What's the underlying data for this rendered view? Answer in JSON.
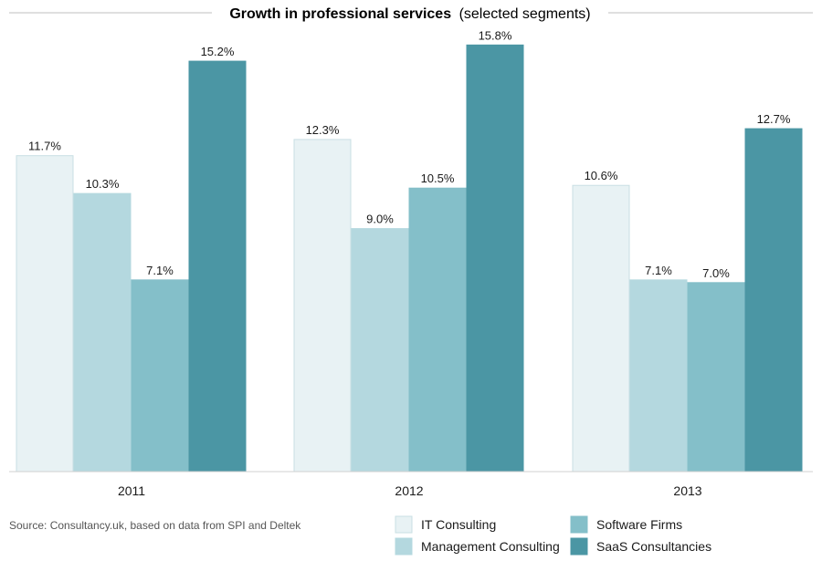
{
  "chart_data": {
    "type": "bar",
    "title": "Growth in professional services",
    "subtitle": "(selected segments)",
    "categories": [
      "2011",
      "2012",
      "2013"
    ],
    "series": [
      {
        "name": "IT Consulting",
        "values": [
          11.7,
          12.3,
          10.6
        ],
        "color": "#e8f2f4",
        "stroke": "#c9dfe3"
      },
      {
        "name": "Management Consulting",
        "values": [
          10.3,
          9.0,
          7.1
        ],
        "color": "#b4d8df",
        "stroke": "#b4d8df"
      },
      {
        "name": "Software Firms",
        "values": [
          7.1,
          10.5,
          7.0
        ],
        "color": "#84bfc9",
        "stroke": "#84bfc9"
      },
      {
        "name": "SaaS Consultancies",
        "values": [
          15.2,
          15.8,
          12.7
        ],
        "color": "#4b96a4",
        "stroke": "#4b96a4"
      }
    ],
    "value_format": "%",
    "ylim": [
      0,
      16.5
    ],
    "grid": false,
    "legend_position": "bottom-right"
  },
  "source": "Source: Consultancy.uk, based on data from SPI and Deltek"
}
